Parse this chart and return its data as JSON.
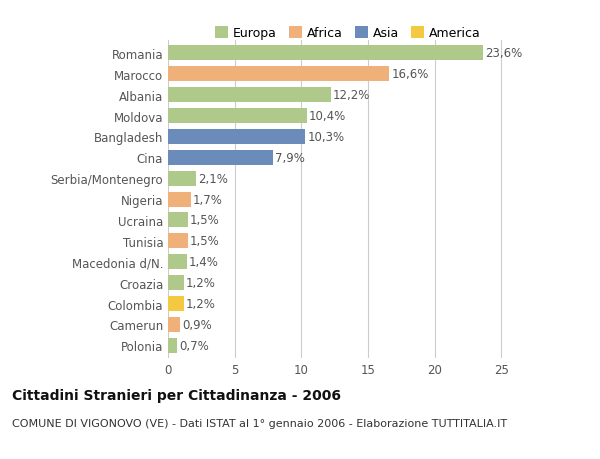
{
  "countries": [
    "Romania",
    "Marocco",
    "Albania",
    "Moldova",
    "Bangladesh",
    "Cina",
    "Serbia/Montenegro",
    "Nigeria",
    "Ucraina",
    "Tunisia",
    "Macedonia d/N.",
    "Croazia",
    "Colombia",
    "Camerun",
    "Polonia"
  ],
  "values": [
    23.6,
    16.6,
    12.2,
    10.4,
    10.3,
    7.9,
    2.1,
    1.7,
    1.5,
    1.5,
    1.4,
    1.2,
    1.2,
    0.9,
    0.7
  ],
  "labels": [
    "23,6%",
    "16,6%",
    "12,2%",
    "10,4%",
    "10,3%",
    "7,9%",
    "2,1%",
    "1,7%",
    "1,5%",
    "1,5%",
    "1,4%",
    "1,2%",
    "1,2%",
    "0,9%",
    "0,7%"
  ],
  "continents": [
    "Europa",
    "Africa",
    "Europa",
    "Europa",
    "Asia",
    "Asia",
    "Europa",
    "Africa",
    "Europa",
    "Africa",
    "Europa",
    "Europa",
    "America",
    "Africa",
    "Europa"
  ],
  "continent_colors": {
    "Europa": "#aec98a",
    "Africa": "#f0b07a",
    "Asia": "#6b8cba",
    "America": "#f5c842"
  },
  "legend_order": [
    "Europa",
    "Africa",
    "Asia",
    "America"
  ],
  "title": "Cittadini Stranieri per Cittadinanza - 2006",
  "subtitle": "COMUNE DI VIGONOVO (VE) - Dati ISTAT al 1° gennaio 2006 - Elaborazione TUTTITALIA.IT",
  "xlim": [
    0,
    27
  ],
  "xticks": [
    0,
    5,
    10,
    15,
    20,
    25
  ],
  "background_color": "#ffffff",
  "grid_color": "#cccccc",
  "bar_height": 0.72,
  "label_fontsize": 8.5,
  "title_fontsize": 10,
  "subtitle_fontsize": 8
}
